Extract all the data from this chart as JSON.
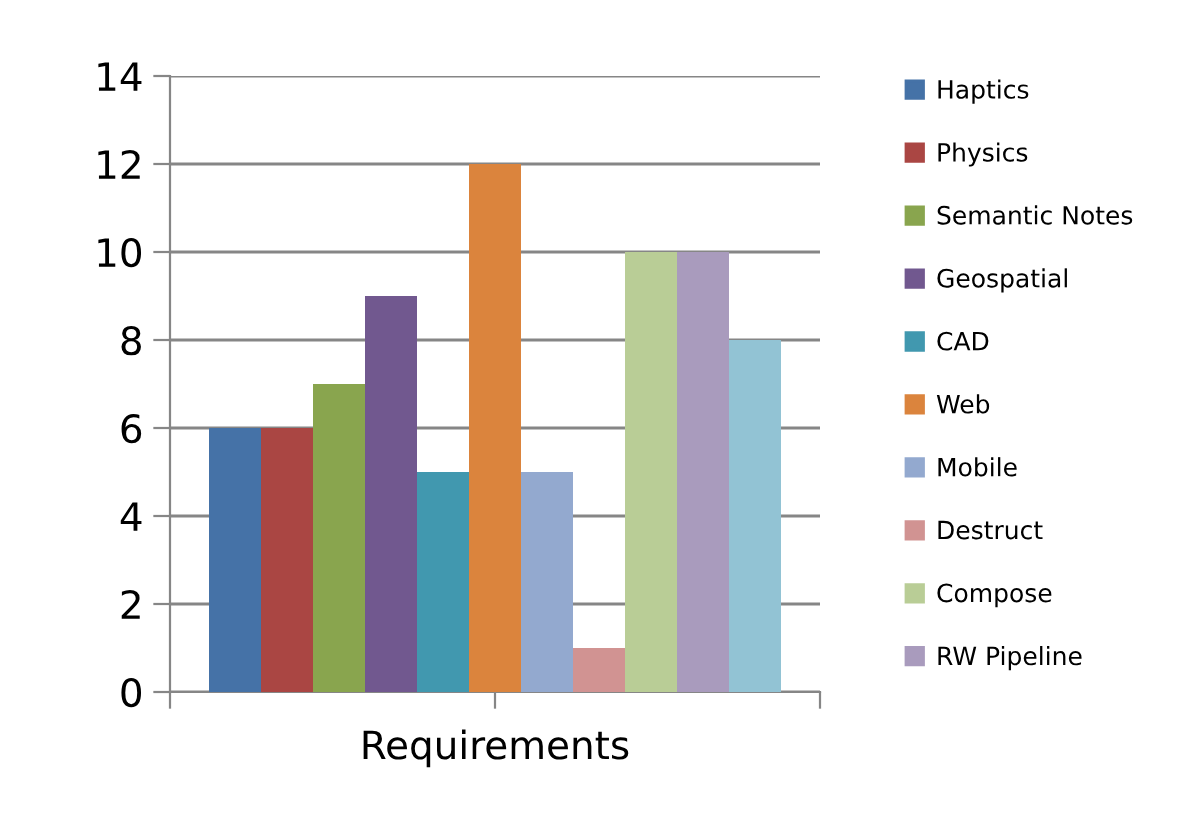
{
  "chart_data": {
    "type": "bar",
    "xlabel": "Requirements",
    "categories": [
      null
    ],
    "series": [
      {
        "name": "Haptics",
        "color": "#4572a7",
        "values": [
          6
        ]
      },
      {
        "name": "Physics",
        "color": "#aa4643",
        "values": [
          6
        ]
      },
      {
        "name": "Semantic Notes",
        "color": "#89a54e",
        "values": [
          7
        ]
      },
      {
        "name": "Geospatial",
        "color": "#71588f",
        "values": [
          9
        ]
      },
      {
        "name": "CAD",
        "color": "#4198af",
        "values": [
          5
        ]
      },
      {
        "name": "Web",
        "color": "#db843d",
        "values": [
          12
        ]
      },
      {
        "name": "Mobile",
        "color": "#93a9cf",
        "values": [
          5
        ]
      },
      {
        "name": "Destruct",
        "color": "#d19392",
        "values": [
          1
        ]
      },
      {
        "name": "Compose",
        "color": "#b9cd96",
        "values": [
          10
        ]
      },
      {
        "name": "RW Pipeline",
        "color": "#a99bbd",
        "values": [
          10
        ]
      },
      {
        "color": "#92c3d4",
        "values": [
          8
        ]
      }
    ],
    "ylim": [
      0,
      14
    ],
    "yticks": [
      0,
      2,
      4,
      6,
      8,
      10,
      12,
      14
    ],
    "grid": "y",
    "legend": "right"
  }
}
